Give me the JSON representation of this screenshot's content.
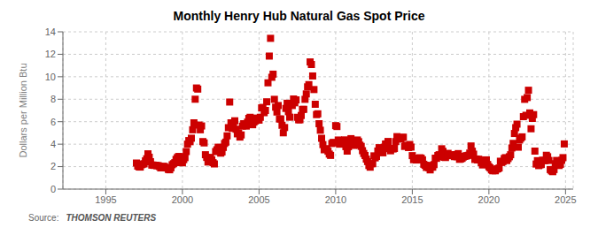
{
  "chart_data": {
    "type": "scatter",
    "title": "Monthly Henry Hub Natural Gas Spot Price",
    "ylabel": "Dollars per Million Btu",
    "annotations": [
      "Source:",
      "THOMSON REUTERS"
    ],
    "color": "#cc0000",
    "marker": "square",
    "grid": true,
    "xlim": [
      1992.2,
      2025.5
    ],
    "xticks": [
      1995,
      2000,
      2005,
      2010,
      2015,
      2020,
      2025
    ],
    "ylim": [
      0,
      14
    ],
    "yticks": [
      0,
      2,
      4,
      6,
      8,
      10,
      12,
      14
    ],
    "x": [
      1997.0,
      1997.083,
      1997.167,
      1997.25,
      1997.333,
      1997.417,
      1997.5,
      1997.583,
      1997.667,
      1997.75,
      1997.833,
      1997.917,
      1998.0,
      1998.083,
      1998.167,
      1998.25,
      1998.333,
      1998.417,
      1998.5,
      1998.583,
      1998.667,
      1998.75,
      1998.833,
      1998.917,
      1999.0,
      1999.083,
      1999.167,
      1999.25,
      1999.333,
      1999.417,
      1999.5,
      1999.583,
      1999.667,
      1999.75,
      1999.833,
      1999.917,
      2000.0,
      2000.083,
      2000.167,
      2000.25,
      2000.333,
      2000.417,
      2000.5,
      2000.583,
      2000.667,
      2000.75,
      2000.833,
      2000.917,
      2001.0,
      2001.083,
      2001.167,
      2001.25,
      2001.333,
      2001.417,
      2001.5,
      2001.583,
      2001.667,
      2001.75,
      2001.833,
      2001.917,
      2002.0,
      2002.083,
      2002.167,
      2002.25,
      2002.333,
      2002.417,
      2002.5,
      2002.583,
      2002.667,
      2002.75,
      2002.833,
      2002.917,
      2003.0,
      2003.083,
      2003.167,
      2003.25,
      2003.333,
      2003.417,
      2003.5,
      2003.583,
      2003.667,
      2003.75,
      2003.833,
      2003.917,
      2004.0,
      2004.083,
      2004.167,
      2004.25,
      2004.333,
      2004.417,
      2004.5,
      2004.583,
      2004.667,
      2004.75,
      2004.833,
      2004.917,
      2005.0,
      2005.083,
      2005.167,
      2005.25,
      2005.333,
      2005.417,
      2005.5,
      2005.583,
      2005.667,
      2005.75,
      2005.833,
      2005.917,
      2006.0,
      2006.083,
      2006.167,
      2006.25,
      2006.333,
      2006.417,
      2006.5,
      2006.583,
      2006.667,
      2006.75,
      2006.833,
      2006.917,
      2007.0,
      2007.083,
      2007.167,
      2007.25,
      2007.333,
      2007.417,
      2007.5,
      2007.583,
      2007.667,
      2007.75,
      2007.833,
      2007.917,
      2008.0,
      2008.083,
      2008.167,
      2008.25,
      2008.333,
      2008.417,
      2008.5,
      2008.583,
      2008.667,
      2008.75,
      2008.833,
      2008.917,
      2009.0,
      2009.083,
      2009.167,
      2009.25,
      2009.333,
      2009.417,
      2009.5,
      2009.583,
      2009.667,
      2009.75,
      2009.833,
      2009.917,
      2010.0,
      2010.083,
      2010.167,
      2010.25,
      2010.333,
      2010.417,
      2010.5,
      2010.583,
      2010.667,
      2010.75,
      2010.833,
      2010.917,
      2011.0,
      2011.083,
      2011.167,
      2011.25,
      2011.333,
      2011.417,
      2011.5,
      2011.583,
      2011.667,
      2011.75,
      2011.833,
      2011.917,
      2012.0,
      2012.083,
      2012.167,
      2012.25,
      2012.333,
      2012.417,
      2012.5,
      2012.583,
      2012.667,
      2012.75,
      2012.833,
      2012.917,
      2013.0,
      2013.083,
      2013.167,
      2013.25,
      2013.333,
      2013.417,
      2013.5,
      2013.583,
      2013.667,
      2013.75,
      2013.833,
      2013.917,
      2014.0,
      2014.083,
      2014.167,
      2014.25,
      2014.333,
      2014.417,
      2014.5,
      2014.583,
      2014.667,
      2014.75,
      2014.833,
      2014.917,
      2015.0,
      2015.083,
      2015.167,
      2015.25,
      2015.333,
      2015.417,
      2015.5,
      2015.583,
      2015.667,
      2015.75,
      2015.833,
      2015.917,
      2016.0,
      2016.083,
      2016.167,
      2016.25,
      2016.333,
      2016.417,
      2016.5,
      2016.583,
      2016.667,
      2016.75,
      2016.833,
      2016.917,
      2017.0,
      2017.083,
      2017.167,
      2017.25,
      2017.333,
      2017.417,
      2017.5,
      2017.583,
      2017.667,
      2017.75,
      2017.833,
      2017.917,
      2018.0,
      2018.083,
      2018.167,
      2018.25,
      2018.333,
      2018.417,
      2018.5,
      2018.583,
      2018.667,
      2018.75,
      2018.833,
      2018.917,
      2019.0,
      2019.083,
      2019.167,
      2019.25,
      2019.333,
      2019.417,
      2019.5,
      2019.583,
      2019.667,
      2019.75,
      2019.833,
      2019.917,
      2020.0,
      2020.083,
      2020.167,
      2020.25,
      2020.333,
      2020.417,
      2020.5,
      2020.583,
      2020.667,
      2020.75,
      2020.833,
      2020.917,
      2021.0,
      2021.083,
      2021.167,
      2021.25,
      2021.333,
      2021.417,
      2021.5,
      2021.583,
      2021.667,
      2021.75,
      2021.833,
      2021.917,
      2022.0,
      2022.083,
      2022.167,
      2022.25,
      2022.333,
      2022.417,
      2022.5,
      2022.583,
      2022.667,
      2022.75,
      2022.833,
      2022.917,
      2023.0,
      2023.083,
      2023.167,
      2023.25,
      2023.333,
      2023.417,
      2023.5,
      2023.583,
      2023.667,
      2023.75,
      2023.833,
      2023.917,
      2024.0,
      2024.083,
      2024.167,
      2024.25,
      2024.333,
      2024.417,
      2024.5,
      2024.583,
      2024.667,
      2024.75,
      2024.833,
      2024.917
    ],
    "values": [
      2.32,
      2.05,
      1.98,
      1.96,
      2.17,
      2.23,
      2.25,
      2.51,
      2.7,
      3.14,
      2.84,
      2.44,
      2.14,
      2.14,
      2.11,
      2.12,
      2.08,
      2.09,
      2.01,
      1.89,
      1.96,
      2.03,
      2.0,
      1.9,
      1.88,
      1.75,
      1.72,
      1.9,
      2.17,
      2.26,
      2.35,
      2.64,
      2.8,
      2.9,
      2.89,
      2.36,
      2.34,
      2.62,
      2.8,
      3.34,
      4.0,
      4.32,
      4.22,
      4.53,
      5.28,
      5.9,
      8.0,
      9.0,
      8.9,
      5.7,
      5.28,
      5.62,
      4.23,
      4.11,
      3.06,
      2.82,
      2.41,
      2.82,
      2.76,
      2.6,
      2.35,
      2.24,
      3.34,
      3.5,
      3.73,
      3.37,
      3.2,
      3.31,
      3.71,
      4.06,
      4.18,
      4.74,
      5.47,
      7.75,
      5.9,
      5.41,
      5.63,
      6.08,
      5.33,
      4.92,
      5.0,
      4.63,
      4.82,
      5.61,
      5.82,
      5.66,
      5.61,
      5.96,
      6.29,
      6.39,
      5.98,
      5.73,
      5.96,
      6.07,
      6.32,
      6.19,
      6.14,
      6.39,
      7.23,
      7.27,
      6.8,
      7.0,
      7.77,
      9.46,
      11.84,
      13.42,
      9.95,
      10.23,
      7.99,
      7.29,
      6.86,
      7.44,
      6.24,
      6.24,
      5.68,
      5.01,
      5.48,
      7.18,
      7.64,
      6.89,
      6.4,
      7.6,
      7.44,
      8.02,
      7.68,
      7.94,
      6.39,
      6.17,
      6.17,
      6.55,
      7.09,
      7.1,
      7.99,
      8.47,
      9.1,
      9.3,
      11.32,
      11.09,
      10.07,
      8.86,
      7.55,
      6.63,
      6.7,
      5.82,
      5.24,
      4.52,
      3.96,
      3.5,
      3.6,
      3.54,
      3.37,
      3.12,
      3.0,
      4.06,
      4.15,
      4.13,
      5.65,
      5.57,
      4.37,
      4.0,
      4.06,
      4.29,
      4.22,
      4.38,
      3.78,
      3.38,
      3.77,
      4.25,
      4.49,
      3.97,
      3.89,
      4.14,
      4.27,
      4.37,
      4.22,
      3.91,
      3.8,
      3.42,
      3.17,
      2.99,
      2.67,
      2.45,
      2.1,
      1.95,
      2.26,
      2.26,
      2.96,
      2.78,
      2.91,
      3.39,
      3.69,
      3.34,
      3.32,
      3.23,
      3.73,
      4.01,
      4.03,
      4.24,
      3.6,
      3.41,
      3.61,
      3.57,
      3.62,
      4.23,
      4.67,
      4.49,
      4.55,
      4.45,
      4.59,
      4.62,
      3.8,
      3.87,
      3.89,
      3.7,
      3.97,
      3.74,
      2.98,
      2.62,
      2.72,
      2.59,
      2.68,
      2.75,
      2.79,
      2.75,
      2.6,
      2.21,
      2.12,
      1.93,
      2.11,
      1.9,
      1.71,
      1.96,
      1.95,
      2.18,
      2.75,
      2.74,
      2.99,
      3.06,
      2.89,
      3.59,
      3.36,
      2.83,
      2.81,
      3.13,
      3.18,
      3.06,
      2.98,
      2.98,
      2.99,
      2.89,
      3.07,
      2.88,
      3.16,
      2.65,
      2.69,
      2.74,
      2.86,
      2.91,
      2.96,
      2.97,
      3.01,
      3.21,
      3.84,
      3.37,
      3.11,
      2.64,
      2.68,
      2.6,
      2.66,
      2.59,
      2.36,
      2.15,
      2.32,
      2.33,
      2.6,
      2.19,
      1.99,
      1.88,
      1.71,
      1.63,
      1.74,
      1.63,
      1.77,
      1.81,
      1.88,
      2.48,
      2.37,
      2.45,
      2.72,
      2.8,
      2.54,
      2.72,
      2.88,
      3.06,
      3.66,
      4.07,
      4.95,
      5.47,
      5.78,
      3.73,
      4.37,
      4.53,
      4.65,
      6.45,
      7.99,
      6.57,
      8.15,
      8.8,
      6.78,
      5.37,
      6.29,
      6.63,
      3.38,
      2.23,
      2.53,
      2.09,
      2.16,
      2.19,
      2.57,
      2.54,
      2.54,
      3.01,
      2.88,
      2.55,
      1.74,
      1.62,
      1.55,
      1.74,
      2.26,
      2.55,
      2.17,
      2.1,
      2.2,
      2.56,
      2.8,
      4.02
    ]
  }
}
